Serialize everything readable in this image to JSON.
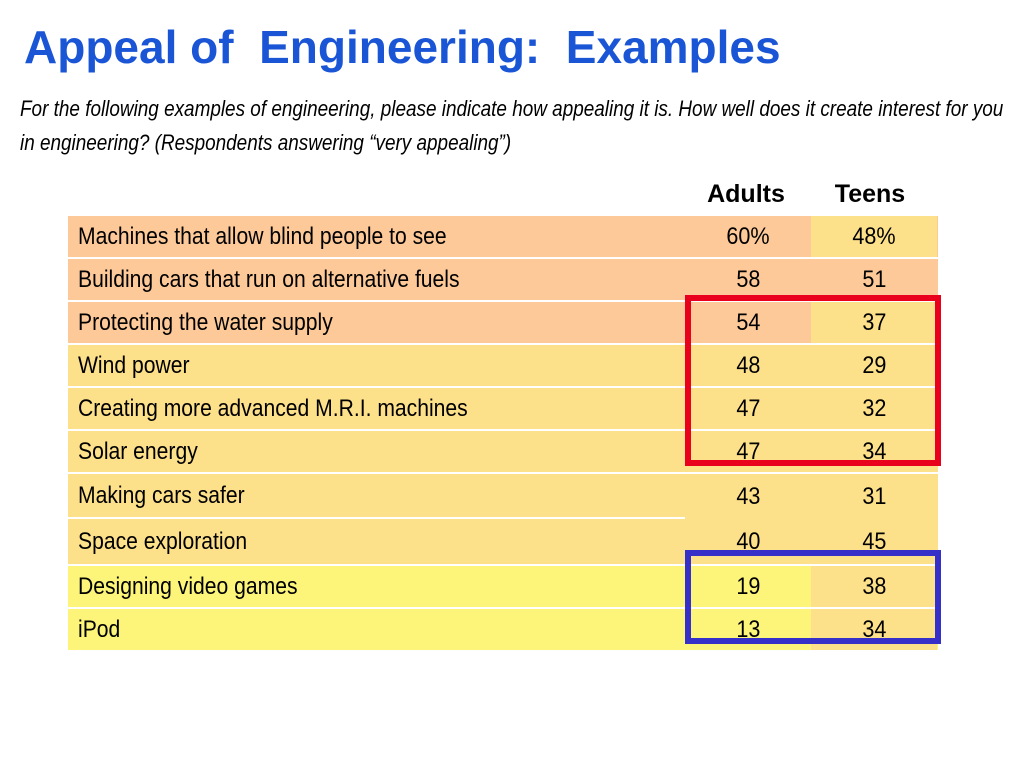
{
  "title": "Appeal of  Engineering:  Examples",
  "subtitle": "For the following examples of engineering, please indicate how appealing it is.  How well does it create interest for you in engineering? (Respondents answering “very appealing”)",
  "columns": {
    "adults": "Adults",
    "teens": "Teens"
  },
  "colors": {
    "title": "#1a55d6",
    "peach": "#fdc998",
    "light_orange": "#fde08a",
    "yellow": "#fdf47a",
    "red_box": "#e8001c",
    "blue_box": "#3730c8"
  },
  "rows": [
    {
      "label": "Machines that allow blind people to see",
      "adults": "60%",
      "teens": "48%"
    },
    {
      "label": "Building cars that run on alternative fuels",
      "adults": "58",
      "teens": "51"
    },
    {
      "label": "Protecting the water supply",
      "adults": "54",
      "teens": "37"
    },
    {
      "label": "Wind power",
      "adults": "48",
      "teens": "29"
    },
    {
      "label": "Creating more advanced M.R.I. machines",
      "adults": "47",
      "teens": "32"
    },
    {
      "label": "Solar energy",
      "adults": "47",
      "teens": "34"
    },
    {
      "label": "Making cars safer",
      "adults": "43",
      "teens": "31"
    },
    {
      "label": "Space exploration",
      "adults": "40",
      "teens": "45"
    },
    {
      "label": "Designing video games",
      "adults": "19",
      "teens": "38"
    },
    {
      "label": "iPod",
      "adults": "13",
      "teens": "34"
    }
  ]
}
